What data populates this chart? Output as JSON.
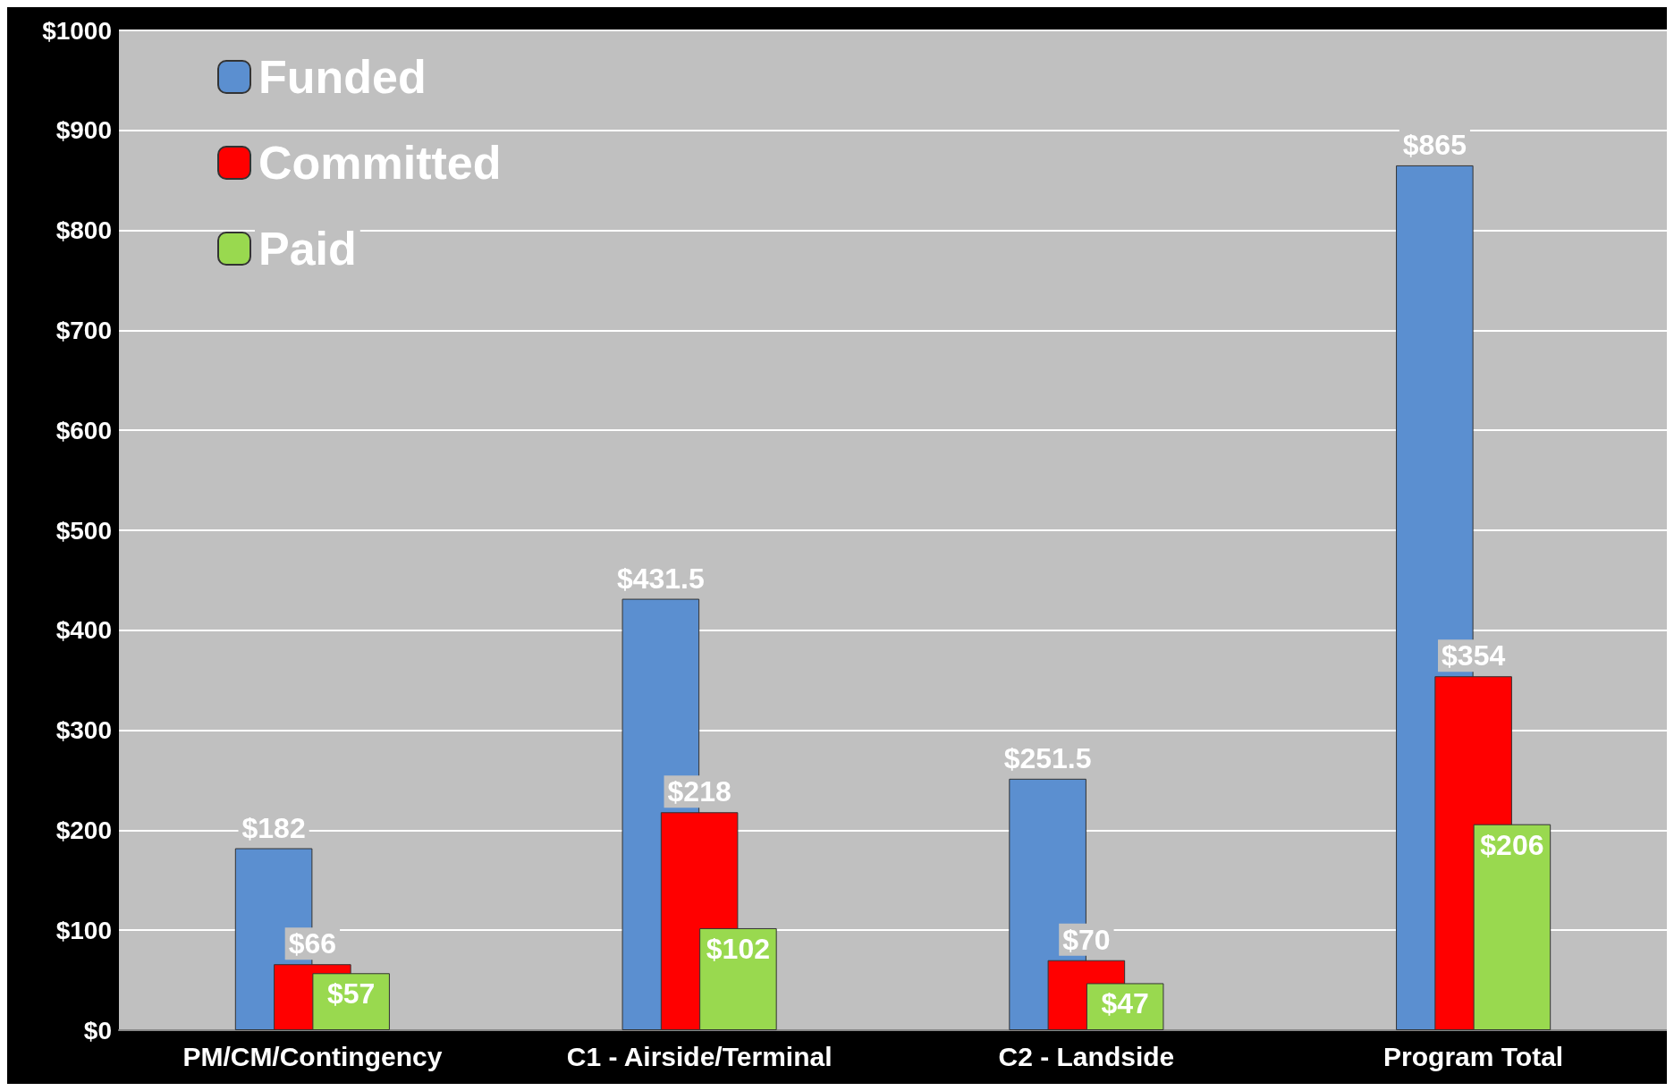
{
  "chart_data": {
    "type": "bar",
    "categories": [
      "PM/CM/Contingency",
      "C1 - Airside/Terminal",
      "C2 - Landside",
      "Program Total"
    ],
    "series": [
      {
        "name": "Funded",
        "color": "#5b8fd0",
        "values": [
          182,
          431.5,
          251.5,
          865
        ],
        "value_labels": [
          "$182",
          "$431.5",
          "$251.5",
          "$865"
        ]
      },
      {
        "name": "Committed",
        "color": "#ff0000",
        "values": [
          66,
          218,
          70,
          354
        ],
        "value_labels": [
          "$66",
          "$218",
          "$70",
          "$354"
        ]
      },
      {
        "name": "Paid",
        "color": "#99d94f",
        "values": [
          57,
          102,
          47,
          206
        ],
        "value_labels": [
          "$57",
          "$102",
          "$47",
          "$206"
        ]
      }
    ],
    "ylim": [
      0,
      1000
    ],
    "yticks": [
      {
        "value": 0,
        "label": "$0"
      },
      {
        "value": 100,
        "label": "$100"
      },
      {
        "value": 200,
        "label": "$200"
      },
      {
        "value": 300,
        "label": "$300"
      },
      {
        "value": 400,
        "label": "$400"
      },
      {
        "value": 500,
        "label": "$500"
      },
      {
        "value": 600,
        "label": "$600"
      },
      {
        "value": 700,
        "label": "$700"
      },
      {
        "value": 800,
        "label": "$800"
      },
      {
        "value": 900,
        "label": "$900"
      },
      {
        "value": 1000,
        "label": "$1000"
      }
    ],
    "grid": "y",
    "legend": "top left"
  }
}
